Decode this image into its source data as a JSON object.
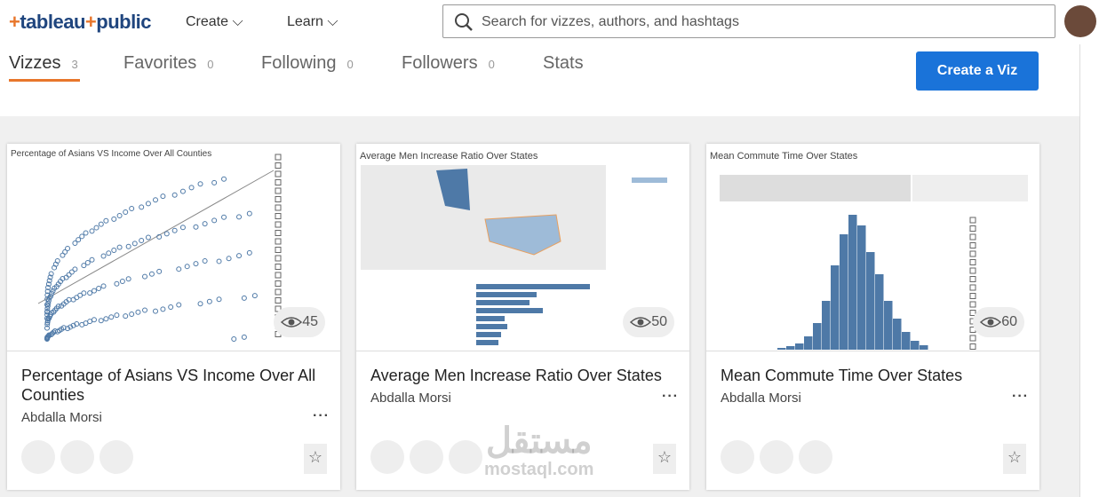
{
  "header": {
    "logo": [
      "tableau",
      "public"
    ],
    "nav": [
      "Create",
      "Learn"
    ],
    "search_placeholder": "Search for vizzes, authors, and hashtags"
  },
  "tabs": [
    {
      "label": "Vizzes",
      "count": 3
    },
    {
      "label": "Favorites",
      "count": 0
    },
    {
      "label": "Following",
      "count": 0
    },
    {
      "label": "Followers",
      "count": 0
    },
    {
      "label": "Stats"
    }
  ],
  "create_button": "Create a Viz",
  "cards": [
    {
      "thumb_title": "Percentage of Asians VS Income Over All Counties",
      "title": "Percentage of Asians VS Income Over All Counties",
      "author": "Abdalla Morsi",
      "views": 45
    },
    {
      "thumb_title": "Average Men Increase Ratio Over States",
      "title": "Average Men Increase Ratio Over States",
      "author": "Abdalla Morsi",
      "views": 50
    },
    {
      "thumb_title": "Mean Commute Time Over States",
      "title": "Mean Commute Time Over States",
      "author": "Abdalla Morsi",
      "views": 60
    }
  ],
  "watermark": [
    "مستقل",
    "mostaql.com"
  ]
}
